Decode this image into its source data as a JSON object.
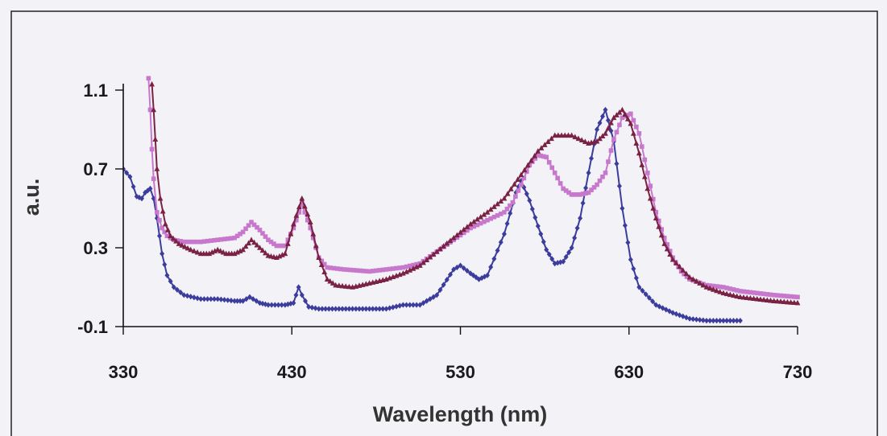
{
  "chart_data": {
    "type": "line",
    "xlabel": "Wavelength (nm)",
    "ylabel": "a.u.",
    "xlim": [
      330,
      730
    ],
    "ylim": [
      -0.1,
      1.1
    ],
    "xticks": [
      "330",
      "430",
      "530",
      "630",
      "730"
    ],
    "yticks": [
      "-0.1",
      "0.3",
      "0.7",
      "1.1"
    ],
    "grid": false,
    "legend": "none",
    "series": [
      {
        "color": "#3c3c9c",
        "marker": "diamond",
        "points": [
          [
            330,
            0.7
          ],
          [
            334,
            0.66
          ],
          [
            338,
            0.56
          ],
          [
            341,
            0.55
          ],
          [
            343,
            0.58
          ],
          [
            346,
            0.6
          ],
          [
            348,
            0.55
          ],
          [
            350,
            0.45
          ],
          [
            353,
            0.27
          ],
          [
            356,
            0.16
          ],
          [
            360,
            0.1
          ],
          [
            366,
            0.06
          ],
          [
            376,
            0.04
          ],
          [
            386,
            0.04
          ],
          [
            396,
            0.03
          ],
          [
            401,
            0.03
          ],
          [
            405,
            0.05
          ],
          [
            407,
            0.04
          ],
          [
            411,
            0.02
          ],
          [
            416,
            0.01
          ],
          [
            426,
            0.01
          ],
          [
            431,
            0.02
          ],
          [
            434,
            0.1
          ],
          [
            436,
            0.06
          ],
          [
            440,
            0.0
          ],
          [
            446,
            -0.01
          ],
          [
            466,
            -0.01
          ],
          [
            486,
            -0.01
          ],
          [
            496,
            0.01
          ],
          [
            506,
            0.01
          ],
          [
            516,
            0.06
          ],
          [
            526,
            0.19
          ],
          [
            530,
            0.21
          ],
          [
            536,
            0.17
          ],
          [
            541,
            0.14
          ],
          [
            546,
            0.16
          ],
          [
            556,
            0.37
          ],
          [
            563,
            0.58
          ],
          [
            566,
            0.64
          ],
          [
            571,
            0.54
          ],
          [
            576,
            0.41
          ],
          [
            581,
            0.29
          ],
          [
            586,
            0.22
          ],
          [
            591,
            0.23
          ],
          [
            596,
            0.3
          ],
          [
            601,
            0.45
          ],
          [
            606,
            0.68
          ],
          [
            611,
            0.9
          ],
          [
            616,
            1.0
          ],
          [
            621,
            0.84
          ],
          [
            626,
            0.5
          ],
          [
            631,
            0.24
          ],
          [
            636,
            0.1
          ],
          [
            646,
            0.01
          ],
          [
            656,
            -0.03
          ],
          [
            666,
            -0.06
          ],
          [
            676,
            -0.07
          ],
          [
            686,
            -0.07
          ],
          [
            696,
            -0.07
          ]
        ]
      },
      {
        "color": "#c878cc",
        "marker": "square",
        "points": [
          [
            345,
            1.16
          ],
          [
            346,
            1.0
          ],
          [
            347,
            0.8
          ],
          [
            348,
            0.65
          ],
          [
            350,
            0.48
          ],
          [
            353,
            0.4
          ],
          [
            356,
            0.36
          ],
          [
            360,
            0.34
          ],
          [
            366,
            0.33
          ],
          [
            376,
            0.33
          ],
          [
            386,
            0.34
          ],
          [
            396,
            0.35
          ],
          [
            401,
            0.38
          ],
          [
            406,
            0.43
          ],
          [
            411,
            0.39
          ],
          [
            416,
            0.34
          ],
          [
            421,
            0.31
          ],
          [
            426,
            0.31
          ],
          [
            431,
            0.4
          ],
          [
            436,
            0.52
          ],
          [
            441,
            0.4
          ],
          [
            446,
            0.25
          ],
          [
            451,
            0.2
          ],
          [
            461,
            0.19
          ],
          [
            476,
            0.18
          ],
          [
            486,
            0.19
          ],
          [
            496,
            0.2
          ],
          [
            506,
            0.22
          ],
          [
            516,
            0.28
          ],
          [
            526,
            0.34
          ],
          [
            536,
            0.4
          ],
          [
            546,
            0.44
          ],
          [
            556,
            0.48
          ],
          [
            561,
            0.53
          ],
          [
            566,
            0.62
          ],
          [
            571,
            0.72
          ],
          [
            576,
            0.77
          ],
          [
            581,
            0.76
          ],
          [
            586,
            0.68
          ],
          [
            591,
            0.6
          ],
          [
            596,
            0.57
          ],
          [
            601,
            0.57
          ],
          [
            606,
            0.58
          ],
          [
            611,
            0.62
          ],
          [
            616,
            0.68
          ],
          [
            621,
            0.85
          ],
          [
            626,
            0.96
          ],
          [
            631,
            0.98
          ],
          [
            636,
            0.88
          ],
          [
            641,
            0.68
          ],
          [
            646,
            0.48
          ],
          [
            651,
            0.35
          ],
          [
            656,
            0.25
          ],
          [
            661,
            0.18
          ],
          [
            666,
            0.14
          ],
          [
            676,
            0.11
          ],
          [
            686,
            0.1
          ],
          [
            696,
            0.08
          ],
          [
            706,
            0.07
          ],
          [
            716,
            0.06
          ],
          [
            730,
            0.05
          ]
        ]
      },
      {
        "color": "#7a2244",
        "marker": "triangle",
        "points": [
          [
            347,
            1.13
          ],
          [
            348,
            1.0
          ],
          [
            349,
            0.85
          ],
          [
            350,
            0.7
          ],
          [
            352,
            0.55
          ],
          [
            355,
            0.42
          ],
          [
            358,
            0.36
          ],
          [
            363,
            0.32
          ],
          [
            370,
            0.29
          ],
          [
            376,
            0.27
          ],
          [
            381,
            0.27
          ],
          [
            386,
            0.29
          ],
          [
            391,
            0.27
          ],
          [
            396,
            0.27
          ],
          [
            401,
            0.29
          ],
          [
            406,
            0.34
          ],
          [
            411,
            0.3
          ],
          [
            416,
            0.26
          ],
          [
            421,
            0.25
          ],
          [
            426,
            0.27
          ],
          [
            431,
            0.42
          ],
          [
            436,
            0.55
          ],
          [
            441,
            0.43
          ],
          [
            446,
            0.25
          ],
          [
            451,
            0.14
          ],
          [
            456,
            0.11
          ],
          [
            466,
            0.1
          ],
          [
            476,
            0.12
          ],
          [
            486,
            0.14
          ],
          [
            496,
            0.17
          ],
          [
            506,
            0.21
          ],
          [
            516,
            0.28
          ],
          [
            526,
            0.35
          ],
          [
            536,
            0.42
          ],
          [
            546,
            0.48
          ],
          [
            556,
            0.55
          ],
          [
            566,
            0.67
          ],
          [
            576,
            0.79
          ],
          [
            586,
            0.87
          ],
          [
            596,
            0.87
          ],
          [
            606,
            0.83
          ],
          [
            611,
            0.84
          ],
          [
            616,
            0.88
          ],
          [
            621,
            0.96
          ],
          [
            626,
            1.0
          ],
          [
            631,
            0.93
          ],
          [
            636,
            0.78
          ],
          [
            641,
            0.6
          ],
          [
            646,
            0.45
          ],
          [
            651,
            0.32
          ],
          [
            656,
            0.24
          ],
          [
            666,
            0.15
          ],
          [
            676,
            0.1
          ],
          [
            686,
            0.07
          ],
          [
            696,
            0.05
          ],
          [
            706,
            0.04
          ],
          [
            716,
            0.03
          ],
          [
            730,
            0.02
          ]
        ]
      }
    ]
  }
}
